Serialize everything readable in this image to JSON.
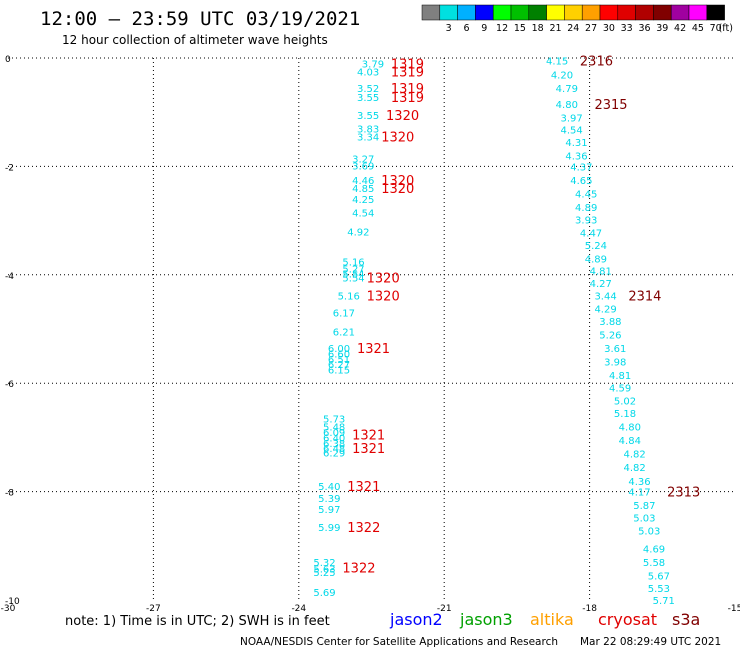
{
  "header": {
    "title": "12:00 – 23:59 UTC 03/19/2021",
    "subtitle": "12 hour collection of altimeter wave heights"
  },
  "colorbar": {
    "unit": "(ft)",
    "bins": [
      {
        "label": "",
        "color": "#808080"
      },
      {
        "label": "3",
        "color": "#00e0e0"
      },
      {
        "label": "6",
        "color": "#00b0ff"
      },
      {
        "label": "9",
        "color": "#0000ff"
      },
      {
        "label": "12",
        "color": "#00ff00"
      },
      {
        "label": "15",
        "color": "#00c000"
      },
      {
        "label": "18",
        "color": "#008000"
      },
      {
        "label": "21",
        "color": "#ffff00"
      },
      {
        "label": "24",
        "color": "#ffd000"
      },
      {
        "label": "27",
        "color": "#ffa000"
      },
      {
        "label": "30",
        "color": "#ff0000"
      },
      {
        "label": "33",
        "color": "#e00000"
      },
      {
        "label": "36",
        "color": "#b00000"
      },
      {
        "label": "39",
        "color": "#800000"
      },
      {
        "label": "42",
        "color": "#a000a0"
      },
      {
        "label": "45",
        "color": "#ff00ff"
      },
      {
        "label": "70",
        "color": "#000000"
      }
    ]
  },
  "chart_data": {
    "type": "scatter",
    "xlim": [
      -30,
      -15
    ],
    "ylim": [
      -10,
      0
    ],
    "x_ticks": [
      -30,
      -27,
      -24,
      -21,
      -18,
      -15
    ],
    "y_ticks": [
      0,
      -2,
      -4,
      -6,
      -8,
      -10
    ],
    "grid": true,
    "legend_placement": "bottom-right",
    "satellites": [
      {
        "name": "jason2",
        "color": "#0000ff"
      },
      {
        "name": "jason3",
        "color": "#00a000"
      },
      {
        "name": "altika",
        "color": "#ffa000"
      },
      {
        "name": "cryosat",
        "color": "#e00000"
      },
      {
        "name": "s3a",
        "color": "#800000"
      }
    ],
    "swh_colors": {
      "low": "#00d8e8",
      "edge": "#30c0e8"
    },
    "tracks": [
      {
        "satellite": "cryosat",
        "points": [
          {
            "x": -22.7,
            "y": -0.1,
            "swh": "3.79"
          },
          {
            "x": -22.8,
            "y": -0.25,
            "swh": "4.03"
          },
          {
            "x": -22.8,
            "y": -0.55,
            "swh": "3.52"
          },
          {
            "x": -22.8,
            "y": -0.72,
            "swh": "3.55"
          },
          {
            "x": -22.8,
            "y": -1.05,
            "swh": "3.55"
          },
          {
            "x": -22.8,
            "y": -1.3,
            "swh": "3.83"
          },
          {
            "x": -22.8,
            "y": -1.45,
            "swh": "3.34"
          },
          {
            "x": -22.9,
            "y": -1.85,
            "swh": "3.27"
          },
          {
            "x": -22.9,
            "y": -1.98,
            "swh": "3.69"
          },
          {
            "x": -22.9,
            "y": -2.25,
            "swh": "4.46"
          },
          {
            "x": -22.9,
            "y": -2.4,
            "swh": "4.85"
          },
          {
            "x": -22.9,
            "y": -2.6,
            "swh": "4.25"
          },
          {
            "x": -22.9,
            "y": -2.85,
            "swh": "4.54"
          },
          {
            "x": -23.0,
            "y": -3.2,
            "swh": "4.92"
          },
          {
            "x": -23.1,
            "y": -3.75,
            "swh": "5.16"
          },
          {
            "x": -23.1,
            "y": -3.88,
            "swh": "5.27"
          },
          {
            "x": -23.1,
            "y": -3.98,
            "swh": "5.54"
          },
          {
            "x": -23.1,
            "y": -4.05,
            "swh": "5.54"
          },
          {
            "x": -23.2,
            "y": -4.38,
            "swh": "5.16"
          },
          {
            "x": -23.3,
            "y": -4.7,
            "swh": "6.17"
          },
          {
            "x": -23.3,
            "y": -5.05,
            "swh": "6.21"
          },
          {
            "x": -23.4,
            "y": -5.35,
            "swh": "6.00"
          },
          {
            "x": -23.4,
            "y": -5.45,
            "swh": "6.60"
          },
          {
            "x": -23.4,
            "y": -5.55,
            "swh": "6.51"
          },
          {
            "x": -23.4,
            "y": -5.65,
            "swh": "6.27"
          },
          {
            "x": -23.4,
            "y": -5.75,
            "swh": "6.15"
          },
          {
            "x": -23.5,
            "y": -6.65,
            "swh": "5.73"
          },
          {
            "x": -23.5,
            "y": -6.8,
            "swh": "5.48"
          },
          {
            "x": -23.5,
            "y": -6.9,
            "swh": "6.09"
          },
          {
            "x": -23.5,
            "y": -7.0,
            "swh": "6.40"
          },
          {
            "x": -23.5,
            "y": -7.1,
            "swh": "6.38"
          },
          {
            "x": -23.5,
            "y": -7.2,
            "swh": "6.48"
          },
          {
            "x": -23.5,
            "y": -7.28,
            "swh": "6.29"
          },
          {
            "x": -23.6,
            "y": -7.9,
            "swh": "5.40"
          },
          {
            "x": -23.6,
            "y": -8.12,
            "swh": "5.39"
          },
          {
            "x": -23.6,
            "y": -8.32,
            "swh": "5.97"
          },
          {
            "x": -23.6,
            "y": -8.65,
            "swh": "5.99"
          },
          {
            "x": -23.7,
            "y": -9.3,
            "swh": "5.32"
          },
          {
            "x": -23.7,
            "y": -9.42,
            "swh": "5.63"
          },
          {
            "x": -23.7,
            "y": -9.48,
            "swh": "5.25"
          },
          {
            "x": -23.7,
            "y": -9.85,
            "swh": "5.69"
          }
        ],
        "time_labels": [
          {
            "x": -22.1,
            "y": -0.1,
            "text": "1319"
          },
          {
            "x": -22.1,
            "y": -0.25,
            "text": "1319"
          },
          {
            "x": -22.1,
            "y": -0.55,
            "text": "1319"
          },
          {
            "x": -22.1,
            "y": -0.72,
            "text": "1319"
          },
          {
            "x": -22.2,
            "y": -1.05,
            "text": "1320"
          },
          {
            "x": -22.3,
            "y": -1.45,
            "text": "1320"
          },
          {
            "x": -22.3,
            "y": -2.25,
            "text": "1320"
          },
          {
            "x": -22.3,
            "y": -2.4,
            "text": "1320"
          },
          {
            "x": -22.6,
            "y": -4.05,
            "text": "1320"
          },
          {
            "x": -22.6,
            "y": -4.38,
            "text": "1320"
          },
          {
            "x": -22.8,
            "y": -5.35,
            "text": "1321"
          },
          {
            "x": -22.9,
            "y": -6.95,
            "text": "1321"
          },
          {
            "x": -22.9,
            "y": -7.2,
            "text": "1321"
          },
          {
            "x": -23.0,
            "y": -7.9,
            "text": "1321"
          },
          {
            "x": -23.0,
            "y": -8.65,
            "text": "1322"
          },
          {
            "x": -23.1,
            "y": -9.4,
            "text": "1322"
          }
        ]
      },
      {
        "satellite": "s3a",
        "points": [
          {
            "x": -18.9,
            "y": -0.05,
            "swh": "4.15"
          },
          {
            "x": -18.8,
            "y": -0.3,
            "swh": "4.20"
          },
          {
            "x": -18.7,
            "y": -0.55,
            "swh": "4.79"
          },
          {
            "x": -18.7,
            "y": -0.85,
            "swh": "4.80"
          },
          {
            "x": -18.6,
            "y": -1.1,
            "swh": "3.97"
          },
          {
            "x": -18.6,
            "y": -1.32,
            "swh": "4.54"
          },
          {
            "x": -18.5,
            "y": -1.55,
            "swh": "4.31"
          },
          {
            "x": -18.5,
            "y": -1.8,
            "swh": "4.36"
          },
          {
            "x": -18.4,
            "y": -2.0,
            "swh": "4.37"
          },
          {
            "x": -18.4,
            "y": -2.25,
            "swh": "4.65"
          },
          {
            "x": -18.3,
            "y": -2.5,
            "swh": "4.45"
          },
          {
            "x": -18.3,
            "y": -2.75,
            "swh": "4.89"
          },
          {
            "x": -18.3,
            "y": -2.98,
            "swh": "3.93"
          },
          {
            "x": -18.2,
            "y": -3.22,
            "swh": "4.47"
          },
          {
            "x": -18.1,
            "y": -3.45,
            "swh": "5.24"
          },
          {
            "x": -18.1,
            "y": -3.7,
            "swh": "4.89"
          },
          {
            "x": -18.0,
            "y": -3.92,
            "swh": "4.81"
          },
          {
            "x": -18.0,
            "y": -4.15,
            "swh": "4.27"
          },
          {
            "x": -17.9,
            "y": -4.38,
            "swh": "3.44"
          },
          {
            "x": -17.9,
            "y": -4.62,
            "swh": "4.29"
          },
          {
            "x": -17.8,
            "y": -4.85,
            "swh": "3.88"
          },
          {
            "x": -17.8,
            "y": -5.1,
            "swh": "5.26"
          },
          {
            "x": -17.7,
            "y": -5.35,
            "swh": "3.61"
          },
          {
            "x": -17.7,
            "y": -5.6,
            "swh": "3.98"
          },
          {
            "x": -17.6,
            "y": -5.85,
            "swh": "4.81"
          },
          {
            "x": -17.6,
            "y": -6.08,
            "swh": "4.59"
          },
          {
            "x": -17.5,
            "y": -6.32,
            "swh": "5.02"
          },
          {
            "x": -17.5,
            "y": -6.55,
            "swh": "5.18"
          },
          {
            "x": -17.4,
            "y": -6.8,
            "swh": "4.80"
          },
          {
            "x": -17.4,
            "y": -7.05,
            "swh": "4.84"
          },
          {
            "x": -17.3,
            "y": -7.3,
            "swh": "4.82"
          },
          {
            "x": -17.3,
            "y": -7.55,
            "swh": "4.82"
          },
          {
            "x": -17.2,
            "y": -7.8,
            "swh": "4.36"
          },
          {
            "x": -17.2,
            "y": -8.0,
            "swh": "4.17"
          },
          {
            "x": -17.1,
            "y": -8.25,
            "swh": "5.87"
          },
          {
            "x": -17.1,
            "y": -8.48,
            "swh": "5.03"
          },
          {
            "x": -17.0,
            "y": -8.72,
            "swh": "5.03"
          },
          {
            "x": -16.9,
            "y": -9.05,
            "swh": "4.69"
          },
          {
            "x": -16.9,
            "y": -9.3,
            "swh": "5.58"
          },
          {
            "x": -16.8,
            "y": -9.55,
            "swh": "5.67"
          },
          {
            "x": -16.8,
            "y": -9.78,
            "swh": "5.53"
          },
          {
            "x": -16.7,
            "y": -10.0,
            "swh": "5.71"
          }
        ],
        "time_labels": [
          {
            "x": -18.2,
            "y": -0.05,
            "text": "2316"
          },
          {
            "x": -17.9,
            "y": -0.85,
            "text": "2315"
          },
          {
            "x": -17.2,
            "y": -4.38,
            "text": "2314"
          },
          {
            "x": -16.4,
            "y": -8.0,
            "text": "2313"
          }
        ]
      }
    ]
  },
  "notes": {
    "note": "note:  1) Time is in UTC;  2) SWH is in feet",
    "credit": "NOAA/NESDIS Center for Satellite Applications and Research",
    "timestamp": "Mar 22 08:29:49 UTC 2021"
  }
}
